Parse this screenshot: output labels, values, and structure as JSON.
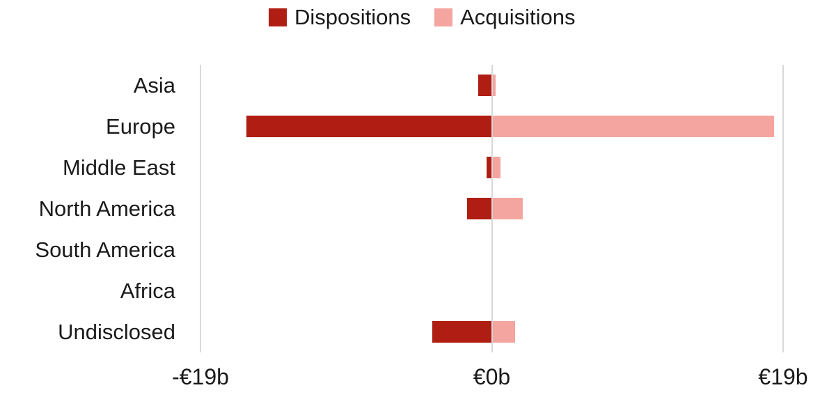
{
  "colors": {
    "background": "#ffffff",
    "gridline": "#d9d9d9",
    "text": "#1a1a1a",
    "dispositions": "#b01e13",
    "acquisitions": "#f5a5a0"
  },
  "legend": {
    "items": [
      {
        "label": "Dispositions",
        "color": "#b01e13"
      },
      {
        "label": "Acquisitions",
        "color": "#f5a5a0"
      }
    ]
  },
  "chart_data": {
    "type": "bar",
    "orientation": "horizontal-diverging",
    "title": "",
    "categories": [
      "Asia",
      "Europe",
      "Middle East",
      "North America",
      "South America",
      "Africa",
      "Undisclosed"
    ],
    "series": [
      {
        "name": "Dispositions",
        "color": "#b01e13",
        "values": [
          -0.9,
          -16.0,
          -0.35,
          -1.6,
          0,
          0,
          -3.9
        ]
      },
      {
        "name": "Acquisitions",
        "color": "#f5a5a0",
        "values": [
          0.25,
          18.4,
          0.55,
          2.0,
          0,
          0,
          1.5
        ]
      }
    ],
    "xlim": [
      -19,
      19
    ],
    "x_ticks": [
      {
        "value": -19,
        "label": "-€19b"
      },
      {
        "value": 0,
        "label": "€0b"
      },
      {
        "value": 19,
        "label": "€19b"
      }
    ],
    "unit": "€ billions",
    "grid": "vertical",
    "legend_position": "top"
  }
}
